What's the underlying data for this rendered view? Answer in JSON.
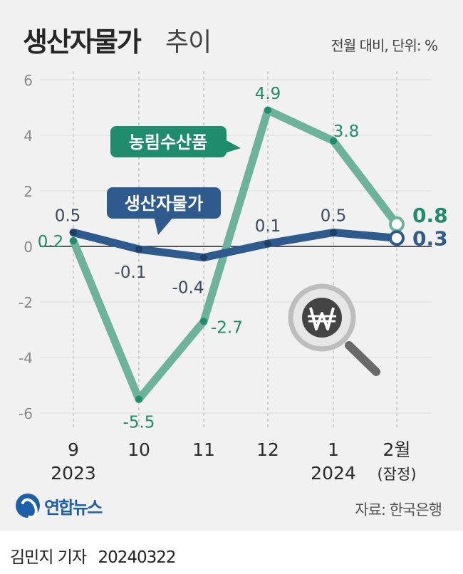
{
  "title": "생산자물가",
  "subtitle": "추이",
  "unit_note": "전월 대비, 단위: %",
  "source": "자료: 한국은행",
  "logo_text": "연합뉴스",
  "byline": {
    "author": "김민지 기자",
    "date": "20240322"
  },
  "colors": {
    "agri": "#6db39c",
    "agri_label": "#1f8c6b",
    "ppi": "#2e5a8e",
    "zero_line": "#222222",
    "grid": "#c4c4c4"
  },
  "icon": "won-magnifier-icon",
  "chart_data": {
    "type": "line",
    "x_top": [
      "9",
      "10",
      "11",
      "12",
      "1",
      "2월"
    ],
    "x_bottom": [
      "2023",
      "",
      "",
      "",
      "2024",
      "(잠정)"
    ],
    "y_ticks": [
      "6",
      "4",
      "2",
      "0",
      "-2",
      "-4",
      "-6"
    ],
    "ylim": [
      -6,
      6
    ],
    "series": [
      {
        "name": "농림수산품",
        "values": [
          0.2,
          -5.5,
          -2.7,
          4.9,
          3.8,
          0.8
        ],
        "labels": [
          "0.2",
          "-5.5",
          "-2.7",
          "4.9",
          "3.8",
          "0.8"
        ]
      },
      {
        "name": "생산자물가",
        "values": [
          0.5,
          -0.1,
          -0.4,
          0.1,
          0.5,
          0.3
        ],
        "labels": [
          "0.5",
          "-0.1",
          "-0.4",
          "0.1",
          "0.5",
          "0.3"
        ]
      }
    ]
  }
}
